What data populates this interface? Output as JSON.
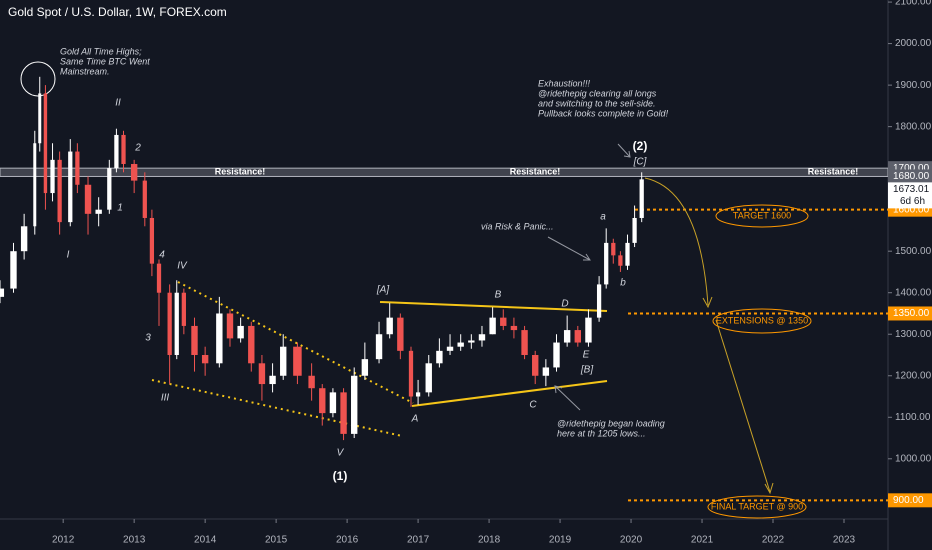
{
  "chart_data": {
    "type": "candlestick",
    "title": "Gold Spot / U.S. Dollar, 1W, FOREX.com",
    "x": [
      2011.11,
      2011.3,
      2011.45,
      2011.6,
      2011.67,
      2011.75,
      2011.85,
      2011.95,
      2012.1,
      2012.2,
      2012.35,
      2012.5,
      2012.65,
      2012.75,
      2012.85,
      2013.0,
      2013.15,
      2013.25,
      2013.35,
      2013.5,
      2013.6,
      2013.7,
      2013.85,
      2014.0,
      2014.2,
      2014.35,
      2014.5,
      2014.65,
      2014.8,
      2014.95,
      2015.1,
      2015.3,
      2015.5,
      2015.65,
      2015.8,
      2015.95,
      2016.1,
      2016.25,
      2016.45,
      2016.6,
      2016.75,
      2016.9,
      2017.0,
      2017.15,
      2017.3,
      2017.45,
      2017.6,
      2017.75,
      2017.9,
      2018.05,
      2018.2,
      2018.35,
      2018.5,
      2018.65,
      2018.8,
      2018.95,
      2019.1,
      2019.25,
      2019.4,
      2019.55,
      2019.65,
      2019.75,
      2019.85,
      2019.95,
      2020.05,
      2020.15
    ],
    "open": [
      1390,
      1410,
      1500,
      1560,
      1760,
      1880,
      1640,
      1720,
      1570,
      1740,
      1660,
      1590,
      1600,
      1700,
      1780,
      1710,
      1670,
      1580,
      1470,
      1400,
      1250,
      1400,
      1320,
      1250,
      1230,
      1350,
      1290,
      1320,
      1230,
      1180,
      1200,
      1270,
      1200,
      1170,
      1110,
      1160,
      1060,
      1200,
      1240,
      1300,
      1340,
      1260,
      1150,
      1160,
      1230,
      1260,
      1270,
      1280,
      1285,
      1300,
      1340,
      1320,
      1310,
      1250,
      1200,
      1220,
      1280,
      1310,
      1280,
      1340,
      1420,
      1520,
      1490,
      1465,
      1520,
      1580
    ],
    "high": [
      1430,
      1520,
      1590,
      1790,
      1920,
      1900,
      1760,
      1740,
      1770,
      1760,
      1680,
      1630,
      1720,
      1795,
      1790,
      1720,
      1690,
      1600,
      1480,
      1420,
      1430,
      1410,
      1340,
      1270,
      1390,
      1360,
      1340,
      1330,
      1250,
      1230,
      1300,
      1280,
      1230,
      1180,
      1170,
      1170,
      1220,
      1280,
      1330,
      1375,
      1350,
      1270,
      1190,
      1250,
      1290,
      1300,
      1300,
      1300,
      1320,
      1365,
      1360,
      1340,
      1320,
      1260,
      1240,
      1300,
      1345,
      1320,
      1360,
      1440,
      1555,
      1530,
      1500,
      1540,
      1610,
      1690
    ],
    "low": [
      1375,
      1400,
      1480,
      1540,
      1740,
      1600,
      1620,
      1540,
      1560,
      1640,
      1540,
      1560,
      1590,
      1690,
      1690,
      1640,
      1560,
      1440,
      1320,
      1180,
      1240,
      1300,
      1210,
      1200,
      1220,
      1270,
      1280,
      1210,
      1140,
      1160,
      1190,
      1180,
      1140,
      1080,
      1100,
      1045,
      1050,
      1190,
      1230,
      1290,
      1240,
      1125,
      1130,
      1150,
      1220,
      1250,
      1260,
      1265,
      1270,
      1300,
      1310,
      1290,
      1240,
      1180,
      1175,
      1210,
      1270,
      1270,
      1270,
      1330,
      1410,
      1470,
      1450,
      1455,
      1510,
      1570
    ],
    "close": [
      1410,
      1500,
      1560,
      1760,
      1880,
      1640,
      1720,
      1570,
      1740,
      1660,
      1590,
      1600,
      1700,
      1780,
      1710,
      1670,
      1580,
      1470,
      1400,
      1250,
      1400,
      1320,
      1250,
      1230,
      1350,
      1290,
      1320,
      1230,
      1180,
      1200,
      1270,
      1200,
      1170,
      1110,
      1160,
      1060,
      1200,
      1240,
      1300,
      1340,
      1260,
      1150,
      1160,
      1230,
      1260,
      1270,
      1280,
      1285,
      1300,
      1340,
      1320,
      1310,
      1250,
      1200,
      1220,
      1280,
      1310,
      1280,
      1340,
      1420,
      1520,
      1490,
      1465,
      1520,
      1580,
      1673.01
    ],
    "up_color": "#ffffff",
    "down_color": "#ef5350",
    "xlim": [
      2011.11,
      2023.62
    ],
    "ylim": [
      855,
      2105
    ],
    "xticks": [
      2012,
      2013,
      2014,
      2015,
      2016,
      2017,
      2018,
      2019,
      2020,
      2021,
      2022,
      2023
    ],
    "yticks": [
      {
        "value": 2100,
        "label": "2100.00"
      },
      {
        "value": 2000,
        "label": "2000.00"
      },
      {
        "value": 1900,
        "label": "1900.00"
      },
      {
        "value": 1800,
        "label": "1800.00"
      },
      {
        "value": 1500,
        "label": "1500.00"
      },
      {
        "value": 1400,
        "label": "1400.00"
      },
      {
        "value": 1300,
        "label": "1300.00"
      },
      {
        "value": 1200,
        "label": "1200.00"
      },
      {
        "value": 1100,
        "label": "1100.00"
      },
      {
        "value": 1000,
        "label": "1000.00"
      }
    ],
    "grid": false,
    "resistance": {
      "low": 1680,
      "high": 1700,
      "label": "Resistance!",
      "low_label": "1680.00",
      "high_label": "1700.00"
    },
    "current_price": {
      "value": 1673.01,
      "label": "1673.01",
      "countdown": "6d 6h"
    },
    "target_lines": [
      {
        "value": 1600,
        "label": "1600.00",
        "name": "TARGET 1600"
      },
      {
        "value": 1350,
        "label": "1350.00",
        "name": "EXTENSIONS @ 1350"
      },
      {
        "value": 900,
        "label": "900.00",
        "name": "FINAL TARGET @ 900"
      }
    ],
    "notes": [
      {
        "lines": [
          "Gold All Time Highs;",
          "Same Time BTC Went",
          "Mainstream."
        ]
      },
      {
        "lines": [
          "Exhaustion!!!",
          "@ridethepig clearing all longs",
          "and switching to the sell-side.",
          "Pullback looks complete in Gold!"
        ]
      },
      {
        "lines": [
          "via Risk & Panic..."
        ]
      },
      {
        "lines": [
          "@ridethepig began loading",
          "here at th 1205 lows..."
        ]
      }
    ],
    "waves": [
      "II",
      "2",
      "1",
      "I",
      "4",
      "IV",
      "3",
      "III",
      "V",
      "(1)",
      "[A]",
      "B",
      "D",
      "A",
      "E",
      "[B]",
      "C",
      "(2)",
      "[C]",
      "a",
      "b"
    ]
  }
}
